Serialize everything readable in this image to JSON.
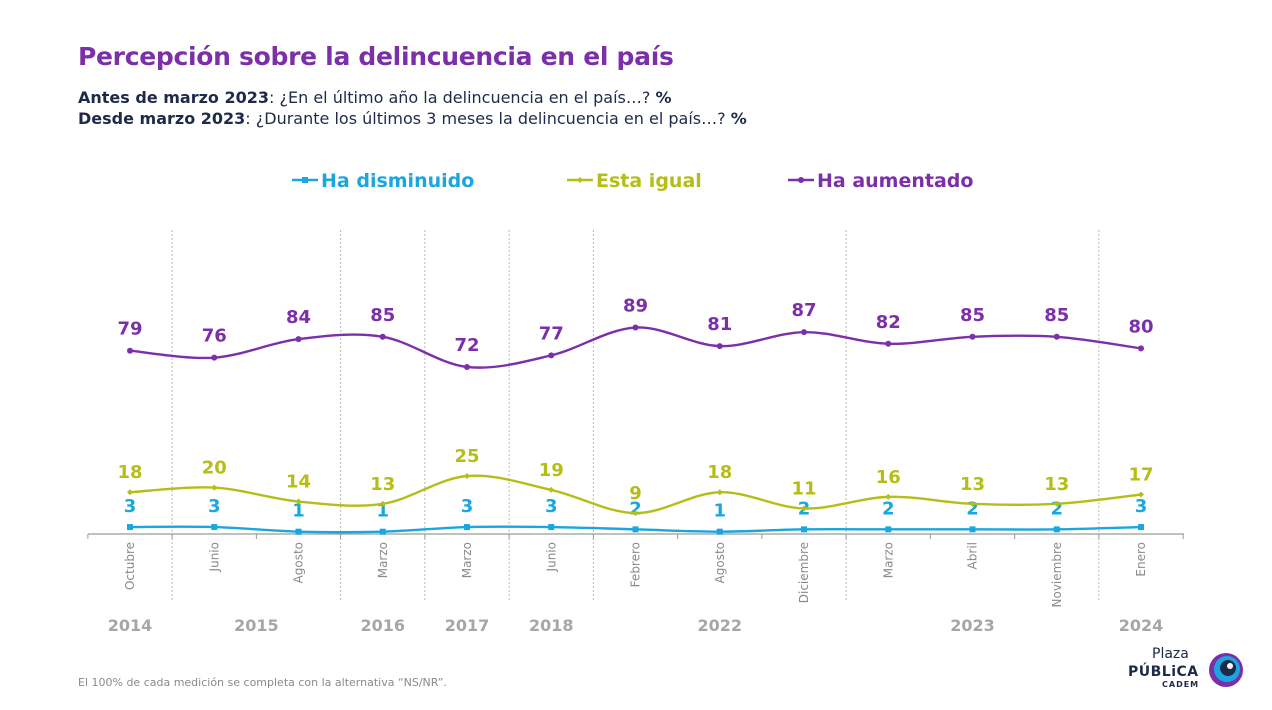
{
  "header": {
    "title": "Percepción sobre la delincuencia en el país",
    "line1_bold": "Antes de marzo 2023",
    "line1_text": ": ¿En el último año la delincuencia en el país…? ",
    "line1_pct": "%",
    "line2_bold": "Desde marzo 2023",
    "line2_text": ": ¿Durante los últimos 3 meses la delincuencia en el país…? ",
    "line2_pct": "%"
  },
  "footnote": "El 100% de cada medición se completa con la alternativa “NS/NR”.",
  "logo": {
    "line1": "Plaza",
    "line2": "PÚBLiCA",
    "line3": "CADEM"
  },
  "chart_data": {
    "type": "line",
    "categories": [
      "Octubre",
      "Junio",
      "Agosto",
      "Marzo",
      "Marzo",
      "Junio",
      "Febrero",
      "Agosto",
      "Diciembre",
      "Marzo",
      "Abril",
      "Noviembre",
      "Enero"
    ],
    "year_labels": [
      {
        "label": "2014",
        "at": 0
      },
      {
        "label": "2015",
        "at": 1.5
      },
      {
        "label": "2016",
        "at": 3
      },
      {
        "label": "2017",
        "at": 4
      },
      {
        "label": "2018",
        "at": 5
      },
      {
        "label": "2022",
        "at": 7
      },
      {
        "label": "2023",
        "at": 10
      },
      {
        "label": "2024",
        "at": 12
      }
    ],
    "year_dividers_after": [
      0,
      2,
      3,
      4,
      5,
      8,
      11
    ],
    "series": [
      {
        "name": "Ha disminuido",
        "color": "#1aa6de",
        "marker": "square",
        "values": [
          3,
          3,
          1,
          1,
          3,
          3,
          2,
          1,
          2,
          2,
          2,
          2,
          3
        ]
      },
      {
        "name": "Esta igual",
        "color": "#b5bd17",
        "marker": "diamond",
        "values": [
          18,
          20,
          14,
          13,
          25,
          19,
          9,
          18,
          11,
          16,
          13,
          13,
          17
        ]
      },
      {
        "name": "Ha aumentado",
        "color": "#7b2fa8",
        "marker": "circle",
        "values": [
          79,
          76,
          84,
          85,
          72,
          77,
          89,
          81,
          87,
          82,
          85,
          85,
          80
        ]
      }
    ],
    "legend_position": "top"
  }
}
